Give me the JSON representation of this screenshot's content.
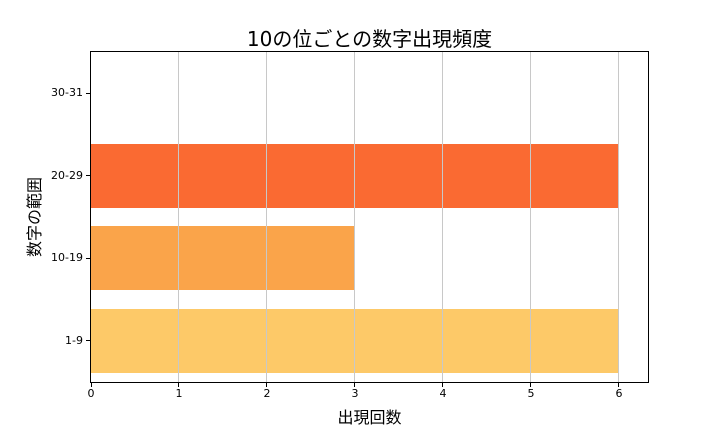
{
  "chart_data": {
    "type": "bar",
    "orientation": "horizontal",
    "title": "10の位ごとの数字出現頻度",
    "xlabel": "出現回数",
    "ylabel": "数字の範囲",
    "categories": [
      "1-9",
      "10-19",
      "20-29",
      "30-31"
    ],
    "values": [
      6,
      3,
      6,
      0
    ],
    "bar_colors": [
      "#FDC968",
      "#FAA44A",
      "#FA6A32",
      null
    ],
    "xlim": [
      0,
      6.33
    ],
    "xticks": [
      0,
      1,
      2,
      3,
      4,
      5,
      6
    ],
    "grid": true,
    "grid_axis": "x",
    "grid_color": "#c8c8c8",
    "spine_color": "#000000",
    "background_color": "#ffffff",
    "bar_height_fraction": 0.78,
    "legend": "none"
  }
}
